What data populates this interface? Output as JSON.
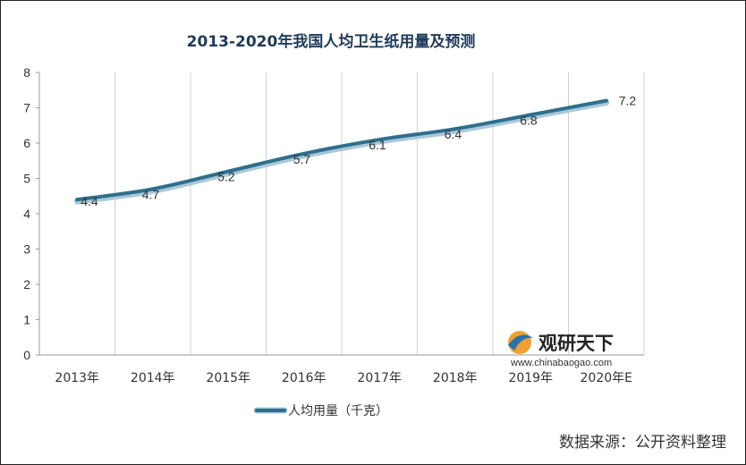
{
  "chart_data": {
    "type": "line",
    "title": "2013-2020年我国人均卫生纸用量及预测",
    "categories": [
      "2013年",
      "2014年",
      "2015年",
      "2016年",
      "2017年",
      "2018年",
      "2019年",
      "2020年E"
    ],
    "series": [
      {
        "name": "人均用量（千克）",
        "values": [
          4.4,
          4.7,
          5.2,
          5.7,
          6.1,
          6.4,
          6.8,
          7.2
        ]
      }
    ],
    "data_labels": [
      "4.4",
      "4.7",
      "5.2",
      "5.7",
      "6.1",
      "6.4",
      "6.8",
      "7.2"
    ],
    "y_ticks": [
      "0",
      "1",
      "2",
      "3",
      "4",
      "5",
      "6",
      "7",
      "8"
    ],
    "ylim": [
      0,
      8
    ],
    "grid": "vertical",
    "legend": "bottom",
    "line_color": "#2e6f8e",
    "line_outline_color": "#a9c9d8"
  },
  "watermark": {
    "name": "观研天下",
    "url": "www.chinabaogao.com"
  },
  "source": "数据来源：公开资料整理"
}
